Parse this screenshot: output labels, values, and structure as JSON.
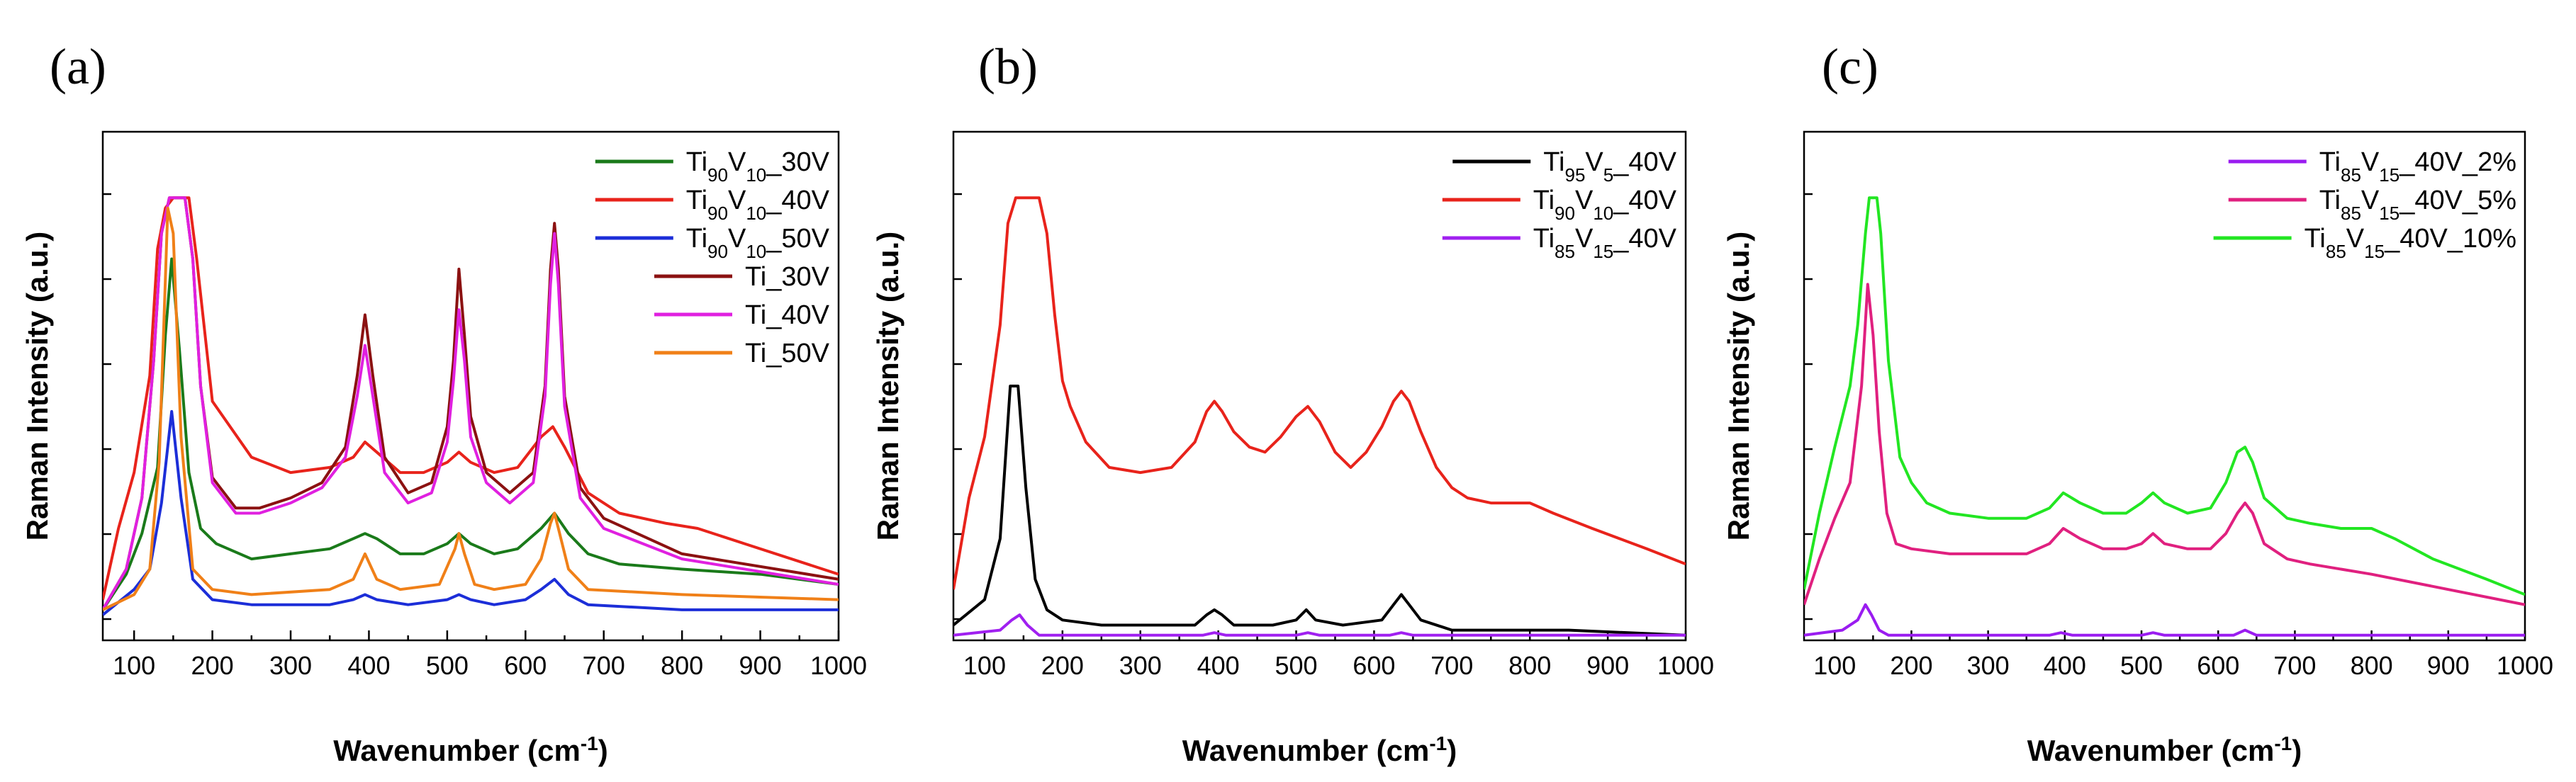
{
  "chart_data": [
    {
      "type": "line",
      "panel_label": "(a)",
      "xlabel": "Wavenumber (cm-1)",
      "ylabel": "Raman Intensity (a.u.)",
      "xlim": [
        60,
        1000
      ],
      "ylim": [
        0,
        100
      ],
      "x_ticks": [
        100,
        200,
        300,
        400,
        500,
        600,
        700,
        800,
        900,
        1000
      ],
      "y_tick_labels_shown": false,
      "legend_position": "top-right",
      "series": [
        {
          "name": "Ti90V10_30V",
          "label_base": "Ti",
          "label_sub1": "90",
          "label_mid": "V",
          "label_sub2": "10",
          "label_tail": "_30V",
          "color": "#1a7a1a",
          "x": [
            60,
            90,
            110,
            130,
            140,
            148,
            158,
            170,
            185,
            205,
            250,
            300,
            350,
            380,
            395,
            410,
            440,
            470,
            500,
            515,
            530,
            560,
            590,
            620,
            637,
            655,
            680,
            720,
            800,
            900,
            1000
          ],
          "y": [
            6,
            13,
            21,
            34,
            60,
            75,
            57,
            33,
            22,
            19,
            16,
            17,
            18,
            20,
            21,
            20,
            17,
            17,
            19,
            21,
            19,
            17,
            18,
            22,
            25,
            21,
            17,
            15,
            14,
            13,
            11
          ]
        },
        {
          "name": "Ti90V10_40V",
          "label_base": "Ti",
          "label_sub1": "90",
          "label_mid": "V",
          "label_sub2": "10",
          "label_tail": "_40V",
          "color": "#e8231b",
          "x": [
            60,
            80,
            100,
            120,
            130,
            140,
            150,
            160,
            170,
            180,
            200,
            250,
            300,
            350,
            380,
            395,
            410,
            440,
            470,
            500,
            515,
            530,
            560,
            590,
            620,
            635,
            650,
            680,
            720,
            780,
            820,
            880,
            1000
          ],
          "y": [
            8,
            22,
            33,
            52,
            77,
            85,
            87,
            87,
            87,
            75,
            47,
            36,
            33,
            34,
            36,
            39,
            37,
            33,
            33,
            35,
            37,
            35,
            33,
            34,
            40,
            42,
            38,
            29,
            25,
            23,
            22,
            19,
            13
          ]
        },
        {
          "name": "Ti90V10_50V",
          "label_base": "Ti",
          "label_sub1": "90",
          "label_mid": "V",
          "label_sub2": "10",
          "label_tail": "_50V",
          "color": "#1c2ed8",
          "x": [
            60,
            100,
            120,
            135,
            148,
            160,
            175,
            200,
            250,
            350,
            380,
            395,
            410,
            450,
            500,
            515,
            530,
            560,
            600,
            620,
            637,
            655,
            680,
            800,
            1000
          ],
          "y": [
            5,
            10,
            14,
            27,
            45,
            28,
            12,
            8,
            7,
            7,
            8,
            9,
            8,
            7,
            8,
            9,
            8,
            7,
            8,
            10,
            12,
            9,
            7,
            6,
            6
          ]
        },
        {
          "name": "Ti_30V",
          "label_base": "Ti",
          "label_sub1": "",
          "label_mid": "",
          "label_sub2": "",
          "label_tail": "_30V",
          "color": "#8b1111",
          "x": [
            60,
            90,
            110,
            125,
            135,
            145,
            155,
            165,
            175,
            185,
            200,
            230,
            260,
            300,
            340,
            370,
            385,
            395,
            405,
            420,
            450,
            480,
            500,
            508,
            515,
            522,
            530,
            550,
            580,
            610,
            625,
            632,
            637,
            642,
            650,
            670,
            700,
            800,
            1000
          ],
          "y": [
            6,
            14,
            28,
            55,
            80,
            87,
            87,
            87,
            75,
            50,
            32,
            26,
            26,
            28,
            31,
            38,
            52,
            64,
            52,
            36,
            29,
            31,
            42,
            55,
            73,
            60,
            44,
            33,
            29,
            33,
            50,
            73,
            82,
            73,
            48,
            30,
            24,
            17,
            12
          ]
        },
        {
          "name": "Ti_40V",
          "label_base": "Ti",
          "label_sub1": "",
          "label_mid": "",
          "label_sub2": "",
          "label_tail": "_40V",
          "color": "#e020e0",
          "x": [
            60,
            90,
            110,
            125,
            135,
            145,
            155,
            165,
            175,
            185,
            200,
            230,
            260,
            300,
            340,
            370,
            385,
            395,
            405,
            420,
            450,
            480,
            500,
            508,
            515,
            522,
            530,
            550,
            580,
            610,
            625,
            632,
            637,
            642,
            650,
            670,
            700,
            800,
            1000
          ],
          "y": [
            6,
            14,
            28,
            55,
            80,
            87,
            87,
            87,
            75,
            50,
            31,
            25,
            25,
            27,
            30,
            36,
            48,
            58,
            48,
            33,
            27,
            29,
            39,
            51,
            65,
            55,
            40,
            31,
            27,
            31,
            48,
            70,
            80,
            70,
            46,
            28,
            22,
            16,
            11
          ]
        },
        {
          "name": "Ti_50V",
          "label_base": "Ti",
          "label_sub1": "",
          "label_mid": "",
          "label_sub2": "",
          "label_tail": "_50V",
          "color": "#f08018",
          "x": [
            60,
            100,
            120,
            132,
            143,
            150,
            160,
            175,
            200,
            250,
            350,
            380,
            395,
            410,
            440,
            490,
            510,
            515,
            522,
            535,
            560,
            600,
            620,
            632,
            637,
            642,
            655,
            680,
            800,
            1000
          ],
          "y": [
            6,
            9,
            14,
            35,
            85,
            80,
            40,
            14,
            10,
            9,
            10,
            12,
            17,
            12,
            10,
            11,
            18,
            21,
            17,
            11,
            10,
            11,
            16,
            23,
            25,
            22,
            14,
            10,
            9,
            8
          ]
        }
      ]
    },
    {
      "type": "line",
      "panel_label": "(b)",
      "xlabel": "Wavenumber (cm-1)",
      "ylabel": "Raman Intensity (a.u.)",
      "xlim": [
        60,
        1000
      ],
      "ylim": [
        0,
        100
      ],
      "x_ticks": [
        100,
        200,
        300,
        400,
        500,
        600,
        700,
        800,
        900,
        1000
      ],
      "y_tick_labels_shown": false,
      "legend_position": "top-right",
      "series": [
        {
          "name": "Ti95V5_40V",
          "label_base": "Ti",
          "label_sub1": "95",
          "label_mid": "V",
          "label_sub2": "5",
          "label_tail": "_40V",
          "color": "#000000",
          "x": [
            60,
            100,
            120,
            133,
            143,
            153,
            165,
            180,
            200,
            250,
            300,
            370,
            385,
            395,
            405,
            420,
            470,
            500,
            513,
            525,
            560,
            610,
            625,
            635,
            645,
            660,
            700,
            800,
            850,
            1000
          ],
          "y": [
            3,
            8,
            20,
            50,
            50,
            30,
            12,
            6,
            4,
            3,
            3,
            3,
            5,
            6,
            5,
            3,
            3,
            4,
            6,
            4,
            3,
            4,
            7,
            9,
            7,
            4,
            2,
            2,
            2,
            1
          ]
        },
        {
          "name": "Ti90V10_40V",
          "label_base": "Ti",
          "label_sub1": "90",
          "label_mid": "V",
          "label_sub2": "10",
          "label_tail": "_40V",
          "color": "#e8231b",
          "x": [
            60,
            80,
            100,
            120,
            130,
            140,
            150,
            160,
            170,
            180,
            190,
            200,
            210,
            230,
            260,
            300,
            340,
            370,
            385,
            395,
            405,
            420,
            440,
            460,
            480,
            500,
            515,
            530,
            550,
            570,
            590,
            610,
            625,
            635,
            645,
            660,
            680,
            700,
            720,
            750,
            800,
            830,
            880,
            950,
            1000
          ],
          "y": [
            10,
            28,
            40,
            62,
            82,
            87,
            87,
            87,
            87,
            80,
            64,
            51,
            46,
            39,
            34,
            33,
            34,
            39,
            45,
            47,
            45,
            41,
            38,
            37,
            40,
            44,
            46,
            43,
            37,
            34,
            37,
            42,
            47,
            49,
            47,
            41,
            34,
            30,
            28,
            27,
            27,
            25,
            22,
            18,
            15
          ]
        },
        {
          "name": "Ti85V15_40V",
          "label_base": "Ti",
          "label_sub1": "85",
          "label_mid": "V",
          "label_sub2": "15",
          "label_tail": "_40V",
          "color": "#a020f0",
          "x": [
            60,
            120,
            135,
            145,
            155,
            170,
            200,
            380,
            395,
            410,
            500,
            515,
            530,
            620,
            635,
            650,
            700,
            1000
          ],
          "y": [
            1,
            2,
            4,
            5,
            3,
            1,
            1,
            1,
            1.5,
            1,
            1,
            1.5,
            1,
            1,
            1.5,
            1,
            1,
            1
          ]
        }
      ]
    },
    {
      "type": "line",
      "panel_label": "(c)",
      "xlabel": "Wavenumber (cm-1)",
      "ylabel": "Raman Intensity (a.u.)",
      "xlim": [
        60,
        1000
      ],
      "ylim": [
        0,
        100
      ],
      "x_ticks": [
        100,
        200,
        300,
        400,
        500,
        600,
        700,
        800,
        900,
        1000
      ],
      "y_tick_labels_shown": false,
      "legend_position": "top-right",
      "series": [
        {
          "name": "Ti85V15_40V_2%",
          "label_base": "Ti",
          "label_sub1": "85",
          "label_mid": "V",
          "label_sub2": "15",
          "label_tail": "_40V_2%",
          "color": "#9a1cf0",
          "x": [
            60,
            110,
            130,
            140,
            148,
            158,
            170,
            190,
            250,
            380,
            395,
            410,
            500,
            515,
            530,
            620,
            635,
            650,
            700,
            1000
          ],
          "y": [
            1,
            2,
            4,
            7,
            5,
            2,
            1,
            1,
            1,
            1,
            1.5,
            1,
            1,
            1.5,
            1,
            1,
            2,
            1,
            1,
            1
          ]
        },
        {
          "name": "Ti85V15_40V_5%",
          "label_base": "Ti",
          "label_sub1": "85",
          "label_mid": "V",
          "label_sub2": "15",
          "label_tail": "_40V_5%",
          "color": "#e0207f",
          "x": [
            60,
            80,
            100,
            120,
            135,
            143,
            150,
            158,
            168,
            180,
            200,
            250,
            300,
            350,
            380,
            398,
            420,
            450,
            480,
            500,
            515,
            530,
            560,
            590,
            610,
            625,
            635,
            645,
            660,
            690,
            720,
            800,
            900,
            1000
          ],
          "y": [
            7,
            16,
            24,
            31,
            50,
            70,
            60,
            41,
            25,
            19,
            18,
            17,
            17,
            17,
            19,
            22,
            20,
            18,
            18,
            19,
            21,
            19,
            18,
            18,
            21,
            25,
            27,
            25,
            19,
            16,
            15,
            13,
            10,
            7
          ]
        },
        {
          "name": "Ti85V15_40V_10%",
          "label_base": "Ti",
          "label_sub1": "85",
          "label_mid": "V",
          "label_sub2": "15",
          "label_tail": "_40V_10%",
          "color": "#22e622",
          "x": [
            60,
            80,
            100,
            120,
            130,
            140,
            145,
            150,
            155,
            160,
            170,
            185,
            200,
            220,
            250,
            300,
            350,
            380,
            398,
            420,
            450,
            480,
            500,
            515,
            530,
            560,
            590,
            610,
            625,
            635,
            645,
            660,
            690,
            720,
            760,
            800,
            830,
            880,
            950,
            1000
          ],
          "y": [
            10,
            25,
            38,
            50,
            62,
            80,
            87,
            87,
            87,
            80,
            55,
            36,
            31,
            27,
            25,
            24,
            24,
            26,
            29,
            27,
            25,
            25,
            27,
            29,
            27,
            25,
            26,
            31,
            37,
            38,
            35,
            28,
            24,
            23,
            22,
            22,
            20,
            16,
            12,
            9
          ]
        }
      ]
    }
  ]
}
